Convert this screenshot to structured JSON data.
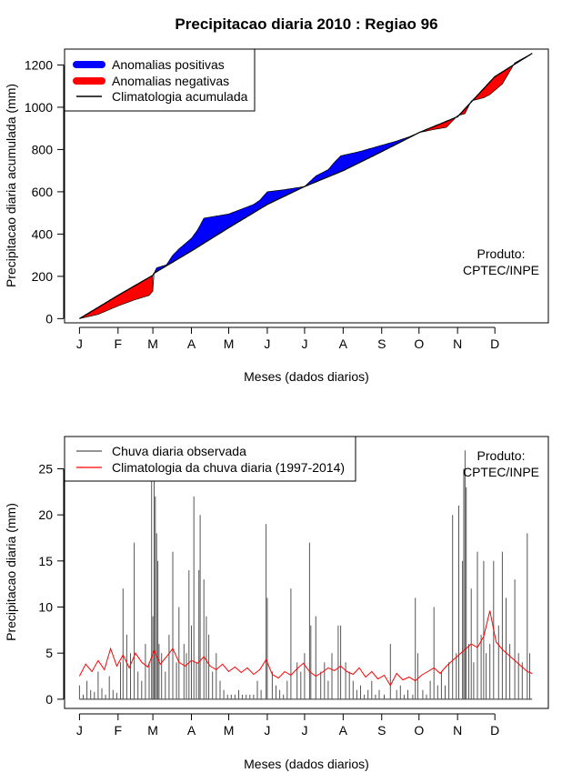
{
  "title": "Precipitacao diaria 2010 : Regiao 96",
  "months": [
    "J",
    "F",
    "M",
    "A",
    "M",
    "J",
    "J",
    "A",
    "S",
    "O",
    "N",
    "D"
  ],
  "colors": {
    "positive": "#0000ff",
    "negative": "#ff0000",
    "clim_line": "#000000",
    "obs_bar": "#555555",
    "clim_daily": "#ff0000"
  },
  "chart_data": [
    {
      "type": "area",
      "title": "Precipitacao diaria 2010 : Regiao 96",
      "xlabel": "Meses (dados diarios)",
      "ylabel": "Precipitacao diaria acumulada (mm)",
      "ylim": [
        -20,
        1275
      ],
      "xlim": [
        -12,
        377
      ],
      "yticks": [
        0,
        200,
        400,
        600,
        800,
        1000,
        1200
      ],
      "month_start_days": [
        0,
        31,
        59,
        90,
        120,
        151,
        181,
        212,
        243,
        273,
        304,
        334
      ],
      "legend": [
        "Anomalias positivas",
        "Anomalias negativas",
        "Climatologia acumulada"
      ],
      "annotation": [
        "Produto:",
        "CPTEC/INPE"
      ],
      "climatology_cumulative": {
        "days": [
          0,
          31,
          59,
          60,
          90,
          120,
          151,
          181,
          212,
          243,
          273,
          304,
          334,
          364
        ],
        "values": [
          0,
          110,
          205,
          215,
          320,
          430,
          540,
          625,
          700,
          790,
          880,
          955,
          1145,
          1255
        ]
      },
      "observed_cumulative": {
        "days": [
          0,
          15,
          31,
          45,
          56,
          59,
          60,
          62,
          70,
          75,
          80,
          90,
          95,
          100,
          120,
          140,
          145,
          151,
          165,
          181,
          190,
          200,
          205,
          210,
          225,
          243,
          255,
          265,
          273,
          285,
          295,
          304,
          310,
          315,
          325,
          330,
          334,
          340,
          350,
          364
        ],
        "values": [
          0,
          20,
          60,
          90,
          110,
          130,
          215,
          240,
          255,
          300,
          330,
          380,
          420,
          475,
          495,
          540,
          560,
          600,
          610,
          625,
          675,
          705,
          740,
          770,
          790,
          820,
          840,
          860,
          880,
          895,
          905,
          960,
          970,
          1030,
          1045,
          1060,
          1080,
          1110,
          1210,
          1255
        ]
      }
    },
    {
      "type": "bar",
      "title": "",
      "xlabel": "Meses (dados diarios)",
      "ylabel": "Precipitacao diaria (mm)",
      "ylim": [
        -1,
        28.5
      ],
      "xlim": [
        -12,
        377
      ],
      "yticks": [
        0,
        5,
        10,
        15,
        20,
        25
      ],
      "legend": [
        "Chuva diaria observada",
        "Climatologia da chuva diaria (1997-2014)"
      ],
      "annotation": [
        "Produto:",
        "CPTEC/INPE"
      ],
      "observed_daily_peaks": {
        "days": [
          35,
          38,
          44,
          58,
          59,
          60,
          61,
          62,
          63,
          64,
          75,
          80,
          88,
          92,
          96,
          97,
          100,
          102,
          150,
          151,
          170,
          185,
          186,
          190,
          208,
          210,
          250,
          270,
          272,
          285,
          300,
          305,
          308,
          309,
          310,
          311,
          315,
          320,
          325,
          333,
          340,
          343,
          350,
          360,
          362
        ],
        "values": [
          12,
          7,
          17,
          24,
          9,
          26,
          22,
          18,
          15,
          6,
          16,
          10,
          14,
          22,
          14,
          20,
          13,
          9,
          19,
          11,
          12,
          17,
          8,
          9,
          8,
          8,
          6,
          11,
          5,
          10,
          20,
          21,
          15,
          25,
          27,
          23,
          12,
          16,
          15,
          15,
          16,
          11,
          13,
          18,
          5
        ]
      },
      "observed_daily_background": {
        "days": [
          0,
          3,
          6,
          9,
          12,
          15,
          18,
          21,
          24,
          27,
          30,
          33,
          41,
          47,
          50,
          53,
          56,
          66,
          69,
          72,
          78,
          84,
          86,
          90,
          94,
          104,
          107,
          110,
          113,
          116,
          119,
          122,
          125,
          128,
          131,
          134,
          137,
          140,
          143,
          146,
          155,
          158,
          161,
          164,
          167,
          175,
          178,
          181,
          194,
          197,
          200,
          203,
          214,
          217,
          220,
          223,
          226,
          229,
          232,
          235,
          238,
          241,
          245,
          255,
          258,
          261,
          264,
          268,
          276,
          279,
          282,
          288,
          291,
          294,
          297,
          303,
          313,
          317,
          323,
          327,
          330,
          337,
          346,
          353,
          356
        ],
        "values": [
          1.5,
          0.5,
          2,
          1,
          0.8,
          3,
          1.2,
          0.5,
          2.5,
          1,
          0.7,
          4,
          5,
          3,
          2,
          6,
          4,
          5,
          3,
          7,
          4,
          6,
          5,
          8,
          4,
          7,
          3,
          5,
          2,
          1,
          0.5,
          0.5,
          0.5,
          1,
          0.5,
          0.5,
          0.5,
          0.5,
          2,
          1,
          3,
          1.5,
          1,
          0.5,
          2,
          4,
          3,
          5,
          3,
          4,
          2,
          5,
          4,
          3,
          2,
          1,
          1.5,
          0.5,
          1,
          2,
          0.5,
          1,
          0.5,
          1,
          1.5,
          0.5,
          1,
          0.5,
          1,
          0.5,
          2,
          1.5,
          3,
          1.5,
          4,
          5,
          6,
          4,
          7,
          5,
          6,
          8,
          6,
          5,
          4
        ]
      },
      "climatology_daily": {
        "days": [
          0,
          5,
          10,
          15,
          20,
          25,
          30,
          35,
          40,
          45,
          50,
          55,
          60,
          65,
          70,
          75,
          80,
          85,
          90,
          95,
          100,
          105,
          110,
          115,
          120,
          125,
          130,
          135,
          140,
          145,
          150,
          155,
          160,
          165,
          170,
          175,
          180,
          185,
          190,
          195,
          200,
          205,
          210,
          215,
          220,
          225,
          230,
          235,
          240,
          245,
          250,
          255,
          260,
          265,
          270,
          275,
          280,
          285,
          290,
          295,
          300,
          305,
          310,
          315,
          320,
          325,
          330,
          335,
          340,
          345,
          350,
          355,
          360,
          364
        ],
        "values": [
          2.5,
          3.8,
          3.0,
          4.2,
          3.2,
          5.5,
          3.6,
          4.8,
          3.4,
          5.0,
          4.0,
          3.5,
          5.3,
          3.8,
          4.6,
          5.5,
          4.0,
          3.6,
          4.2,
          3.9,
          4.6,
          3.6,
          3.2,
          3.8,
          3.0,
          3.5,
          2.9,
          3.4,
          2.7,
          3.2,
          4.3,
          2.7,
          2.3,
          3.0,
          2.6,
          3.3,
          3.9,
          3.0,
          2.5,
          2.9,
          3.4,
          3.1,
          3.6,
          3.0,
          2.7,
          3.4,
          2.4,
          3.0,
          2.2,
          2.6,
          1.5,
          2.8,
          2.1,
          2.4,
          2.0,
          2.6,
          3.0,
          3.4,
          2.8,
          3.6,
          4.2,
          4.8,
          5.4,
          6.0,
          5.6,
          6.8,
          9.6,
          6.2,
          5.4,
          4.8,
          4.2,
          3.6,
          3.0,
          2.8
        ]
      }
    }
  ]
}
